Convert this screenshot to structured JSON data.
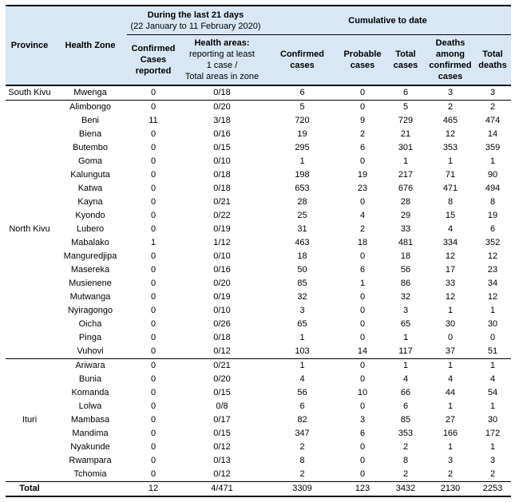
{
  "colors": {
    "header_bg": "#d9e7f4",
    "border": "#000000",
    "text": "#000000",
    "body_bg": "#ffffff"
  },
  "table": {
    "header": {
      "province": "Province",
      "health_zone": "Health Zone",
      "last21_title": "During the last 21 days",
      "last21_subtitle": "(22 January to 11 February 2020)",
      "cumulative_title": "Cumulative to date",
      "confirmed_reported": "Confirmed\nCases\nreported",
      "health_areas_title": "Health areas:",
      "health_areas_detail": "reporting at least\n1 case /\nTotal areas in zone",
      "confirmed_cases": "Confirmed\ncases",
      "probable_cases": "Probable\ncases",
      "total_cases": "Total\ncases",
      "deaths_among_confirmed": "Deaths\namong\nconfirmed\ncases",
      "total_deaths": "Total\ndeaths"
    },
    "sections": [
      {
        "province": "South Kivu",
        "rows": [
          {
            "zone": "Mwenga",
            "values": [
              "0",
              "0/18",
              "6",
              "0",
              "6",
              "3",
              "3"
            ]
          }
        ]
      },
      {
        "province": "North Kivu",
        "rows": [
          {
            "zone": "Alimbongo",
            "values": [
              "0",
              "0/20",
              "5",
              "0",
              "5",
              "2",
              "2"
            ]
          },
          {
            "zone": "Beni",
            "values": [
              "11",
              "3/18",
              "720",
              "9",
              "729",
              "465",
              "474"
            ]
          },
          {
            "zone": "Biena",
            "values": [
              "0",
              "0/16",
              "19",
              "2",
              "21",
              "12",
              "14"
            ]
          },
          {
            "zone": "Butembo",
            "values": [
              "0",
              "0/15",
              "295",
              "6",
              "301",
              "353",
              "359"
            ]
          },
          {
            "zone": "Goma",
            "values": [
              "0",
              "0/10",
              "1",
              "0",
              "1",
              "1",
              "1"
            ]
          },
          {
            "zone": "Kalunguta",
            "values": [
              "0",
              "0/18",
              "198",
              "19",
              "217",
              "71",
              "90"
            ]
          },
          {
            "zone": "Katwa",
            "values": [
              "0",
              "0/18",
              "653",
              "23",
              "676",
              "471",
              "494"
            ]
          },
          {
            "zone": "Kayna",
            "values": [
              "0",
              "0/21",
              "28",
              "0",
              "28",
              "8",
              "8"
            ]
          },
          {
            "zone": "Kyondo",
            "values": [
              "0",
              "0/22",
              "25",
              "4",
              "29",
              "15",
              "19"
            ]
          },
          {
            "zone": "Lubero",
            "values": [
              "0",
              "0/19",
              "31",
              "2",
              "33",
              "4",
              "6"
            ]
          },
          {
            "zone": "Mabalako",
            "values": [
              "1",
              "1/12",
              "463",
              "18",
              "481",
              "334",
              "352"
            ]
          },
          {
            "zone": "Manguredjipa",
            "values": [
              "0",
              "0/10",
              "18",
              "0",
              "18",
              "12",
              "12"
            ]
          },
          {
            "zone": "Masereka",
            "values": [
              "0",
              "0/16",
              "50",
              "6",
              "56",
              "17",
              "23"
            ]
          },
          {
            "zone": "Musienene",
            "values": [
              "0",
              "0/20",
              "85",
              "1",
              "86",
              "33",
              "34"
            ]
          },
          {
            "zone": "Mutwanga",
            "values": [
              "0",
              "0/19",
              "32",
              "0",
              "32",
              "12",
              "12"
            ]
          },
          {
            "zone": "Nyiragongo",
            "values": [
              "0",
              "0/10",
              "3",
              "0",
              "3",
              "1",
              "1"
            ]
          },
          {
            "zone": "Oicha",
            "values": [
              "0",
              "0/26",
              "65",
              "0",
              "65",
              "30",
              "30"
            ]
          },
          {
            "zone": "Pinga",
            "values": [
              "0",
              "0/18",
              "1",
              "0",
              "1",
              "0",
              "0"
            ]
          },
          {
            "zone": "Vuhovi",
            "values": [
              "0",
              "0/12",
              "103",
              "14",
              "117",
              "37",
              "51"
            ]
          }
        ]
      },
      {
        "province": "Ituri",
        "rows": [
          {
            "zone": "Ariwara",
            "values": [
              "0",
              "0/21",
              "1",
              "0",
              "1",
              "1",
              "1"
            ]
          },
          {
            "zone": "Bunia",
            "values": [
              "0",
              "0/20",
              "4",
              "0",
              "4",
              "4",
              "4"
            ]
          },
          {
            "zone": "Komanda",
            "values": [
              "0",
              "0/15",
              "56",
              "10",
              "66",
              "44",
              "54"
            ]
          },
          {
            "zone": "Lolwa",
            "values": [
              "0",
              "0/8",
              "6",
              "0",
              "6",
              "1",
              "1"
            ]
          },
          {
            "zone": "Mambasa",
            "values": [
              "0",
              "0/17",
              "82",
              "3",
              "85",
              "27",
              "30"
            ]
          },
          {
            "zone": "Mandima",
            "values": [
              "0",
              "0/15",
              "347",
              "6",
              "353",
              "166",
              "172"
            ]
          },
          {
            "zone": "Nyakunde",
            "values": [
              "0",
              "0/12",
              "2",
              "0",
              "2",
              "1",
              "1"
            ]
          },
          {
            "zone": "Rwampara",
            "values": [
              "0",
              "0/13",
              "8",
              "0",
              "8",
              "3",
              "3"
            ]
          },
          {
            "zone": "Tchomia",
            "values": [
              "0",
              "0/12",
              "2",
              "0",
              "2",
              "2",
              "2"
            ]
          }
        ]
      }
    ],
    "total": {
      "label": "Total",
      "zone": "",
      "values": [
        "12",
        "4/471",
        "3309",
        "123",
        "3432",
        "2130",
        "2253"
      ]
    }
  }
}
